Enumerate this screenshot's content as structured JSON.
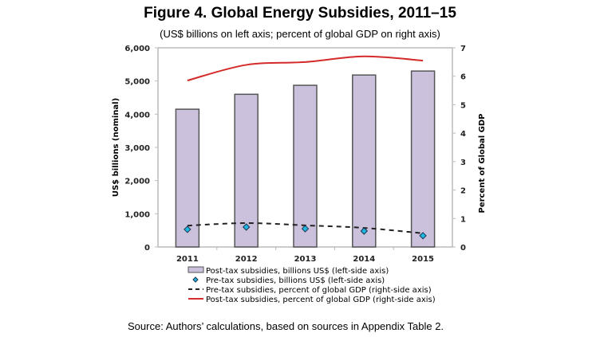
{
  "title": "Figure 4. Global Energy Subsidies, 2011–15",
  "subtitle": "(US$ billions on left axis; percent of global GDP on right axis)",
  "source": "Source: Authors’ calculations, based on sources in Appendix Table 2.",
  "colors": {
    "bar_fill": "#ccc1dc",
    "bar_stroke": "#555555",
    "post_tax_line": "#d42a2a",
    "pre_tax_line": "#222222",
    "diamond_fill": "#1fb6e0",
    "diamond_stroke": "#1a3550",
    "axis": "#bbbbbb"
  },
  "chart_data": {
    "type": "bar",
    "title": "Figure 4. Global Energy Subsidies, 2011–15",
    "subtitle": "(US$ billions on left axis; percent of global GDP on right axis)",
    "categories": [
      "2011",
      "2012",
      "2013",
      "2014",
      "2015"
    ],
    "xlabel": "",
    "ylabel": "US$ billions (nominal)",
    "ylabel_right": "Percent of Global GDP",
    "ylim": [
      0,
      6000
    ],
    "ylim_right": [
      0,
      7
    ],
    "yticks": [
      "0",
      "1,000",
      "2,000",
      "3,000",
      "4,000",
      "5,000",
      "6,000"
    ],
    "yticks_values": [
      0,
      1000,
      2000,
      3000,
      4000,
      5000,
      6000
    ],
    "yticks_right": [
      "0",
      "1",
      "2",
      "3",
      "4",
      "5",
      "6",
      "7"
    ],
    "yticks_right_values": [
      0,
      1,
      2,
      3,
      4,
      5,
      6,
      7
    ],
    "grid": false,
    "legend_position": "bottom",
    "series": [
      {
        "name": "Post-tax subsidies, billions US$ (left-side axis)",
        "type": "bar",
        "axis": "left",
        "values": [
          4150,
          4600,
          4870,
          5180,
          5300
        ]
      },
      {
        "name": "Pre-tax subsidies, billions US$ (left-side axis)",
        "type": "scatter",
        "axis": "left",
        "marker": "diamond",
        "values": [
          530,
          600,
          550,
          480,
          340
        ]
      },
      {
        "name": "Pre-tax subsidies, percent of global GDP (right-side axis)",
        "type": "line",
        "axis": "right",
        "style": "dashed",
        "values": [
          0.75,
          0.84,
          0.76,
          0.67,
          0.48
        ]
      },
      {
        "name": "Post-tax subsidies, percent of global GDP (right-side axis)",
        "type": "line",
        "axis": "right",
        "style": "solid",
        "values": [
          5.85,
          6.4,
          6.5,
          6.7,
          6.55
        ]
      }
    ]
  }
}
